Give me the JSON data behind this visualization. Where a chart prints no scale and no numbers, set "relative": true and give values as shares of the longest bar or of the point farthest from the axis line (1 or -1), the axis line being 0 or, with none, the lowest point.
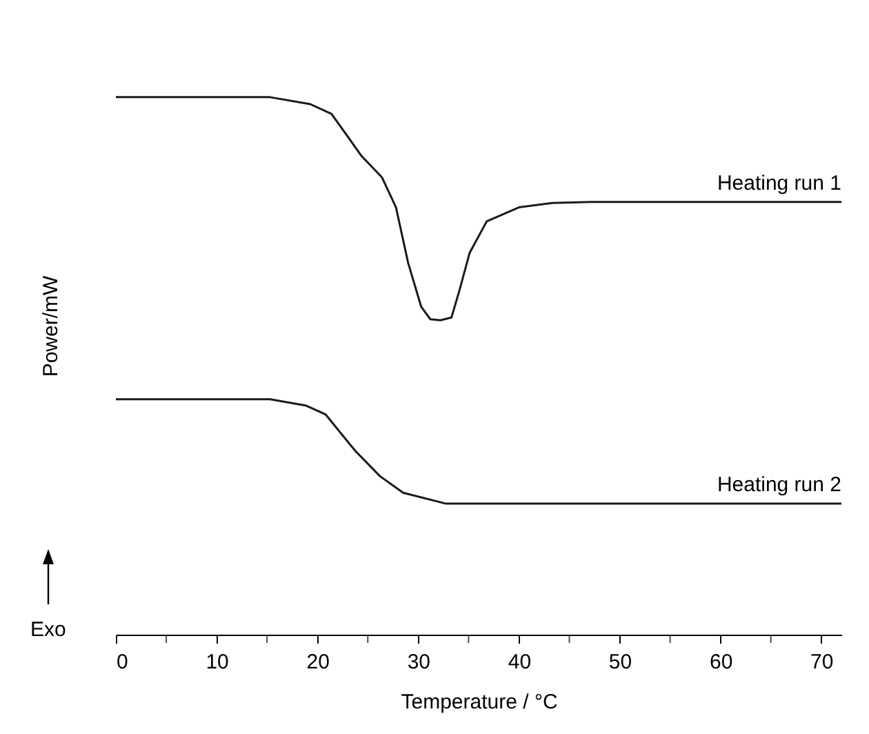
{
  "chart_data": {
    "type": "line",
    "xlabel": "Temperature / °C",
    "ylabel": "Power/mW",
    "relative": true,
    "xlim": [
      0,
      72
    ],
    "xticks": [
      0,
      {
        "value": 5,
        "label": null
      },
      10,
      {
        "value": 15,
        "label": null
      },
      20,
      {
        "value": 25,
        "label": null
      },
      30,
      {
        "value": 35,
        "label": null
      },
      40,
      {
        "value": 45,
        "label": null
      },
      50,
      {
        "value": 55,
        "label": null
      },
      60,
      {
        "value": 65,
        "label": null
      },
      70
    ],
    "grid": false,
    "annotations": [
      "Exo"
    ],
    "series": [
      {
        "name": "Heating run 1",
        "color": "#1a1a1a",
        "x": [
          0,
          15.3,
          19.3,
          21.4,
          24.4,
          26.4,
          27.8,
          29.0,
          30.3,
          31.2,
          32.2,
          33.3,
          34.1,
          35.1,
          36.8,
          40.0,
          43.3,
          47.1,
          72
        ],
        "values": [
          1.0,
          1.0,
          0.987,
          0.969,
          0.89,
          0.851,
          0.795,
          0.692,
          0.61,
          0.587,
          0.585,
          0.59,
          0.641,
          0.71,
          0.769,
          0.795,
          0.803,
          0.805,
          0.805
        ]
      },
      {
        "name": "Heating run 2",
        "color": "#1a1a1a",
        "x": [
          0,
          15.3,
          18.9,
          20.8,
          23.8,
          26.2,
          28.5,
          32.7,
          72
        ],
        "values": [
          0.438,
          0.438,
          0.426,
          0.41,
          0.341,
          0.295,
          0.264,
          0.244,
          0.244
        ]
      }
    ]
  }
}
